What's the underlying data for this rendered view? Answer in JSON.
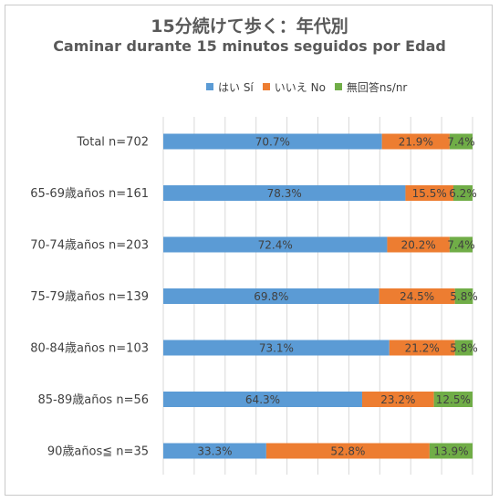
{
  "title_ja": "15分続けて歩く：年代別",
  "title_es": "Caminar durante 15 minutos seguidos por Edad",
  "legend": [
    {
      "label": "はい Sí",
      "color": "#5b9bd5"
    },
    {
      "label": "いいえ No",
      "color": "#ed7d31"
    },
    {
      "label": "無回答ns/nr",
      "color": "#70ad47"
    }
  ],
  "chart_data": {
    "type": "bar",
    "orientation": "horizontal",
    "stacked": "100%",
    "categories": [
      "Total  n=702",
      "65-69歳años n=161",
      "70-74歳años n=203",
      "75-79歳años  n=139",
      "80-84歳años n=103",
      "85-89歳años n=56",
      "90歳años≦ n=35"
    ],
    "series": [
      {
        "name": "はい Sí",
        "values": [
          70.7,
          78.3,
          72.4,
          69.8,
          73.1,
          64.3,
          33.3
        ],
        "labels": [
          "70.7%",
          "78.3%",
          "72.4%",
          "69.8%",
          "73.1%",
          "64.3%",
          "33.3%"
        ]
      },
      {
        "name": "いいえ No",
        "values": [
          21.9,
          15.5,
          20.2,
          24.5,
          21.2,
          23.2,
          52.8
        ],
        "labels": [
          "21.9%",
          "15.5%",
          "20.2%",
          "24.5%",
          "21.2%",
          "23.2%",
          "52.8%"
        ]
      },
      {
        "name": "無回答ns/nr",
        "values": [
          7.4,
          6.2,
          7.4,
          5.8,
          5.8,
          12.5,
          13.9
        ],
        "labels": [
          "7.4%",
          "6.2%",
          "7.4%",
          "5.8%",
          "5.8%",
          "12.5%",
          "13.9%"
        ]
      }
    ],
    "xlim": [
      0,
      100
    ],
    "grid": true,
    "legend_position": "top-right"
  }
}
